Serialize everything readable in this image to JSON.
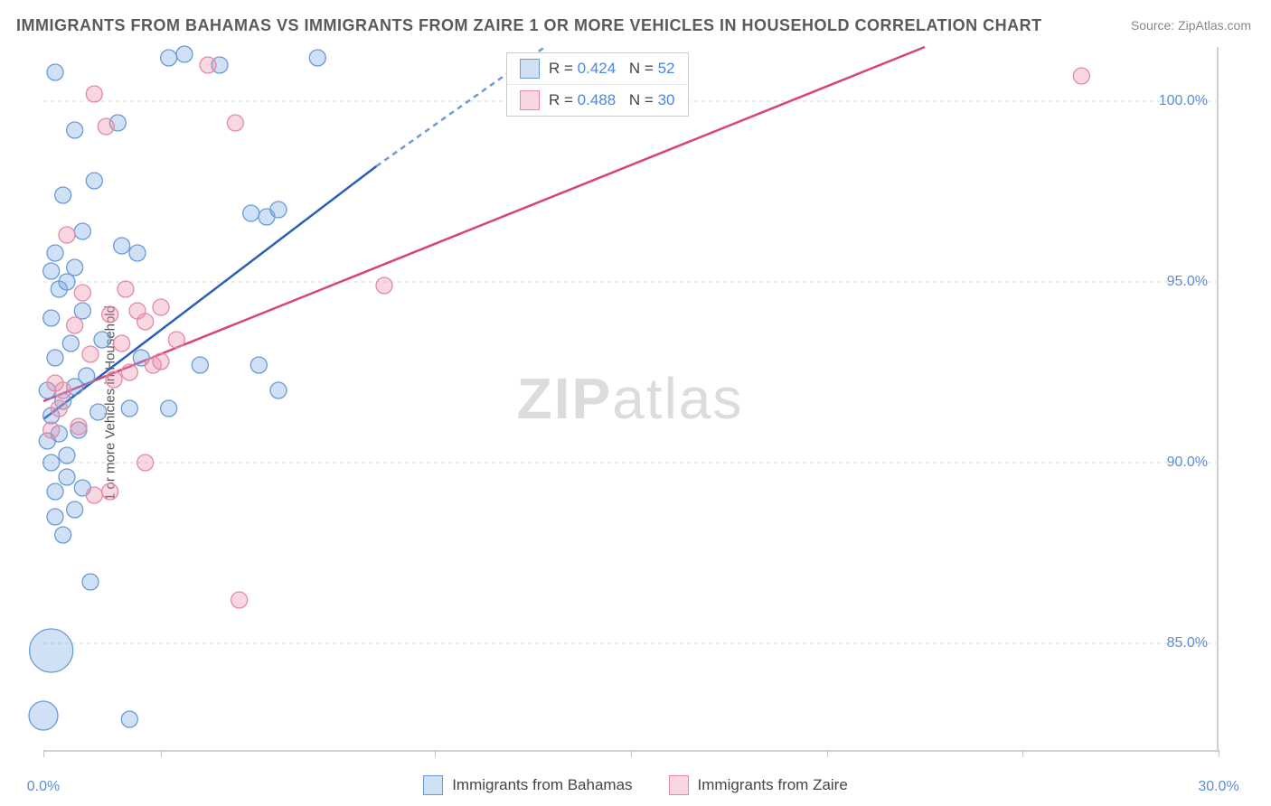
{
  "title": "IMMIGRANTS FROM BAHAMAS VS IMMIGRANTS FROM ZAIRE 1 OR MORE VEHICLES IN HOUSEHOLD CORRELATION CHART",
  "source": "Source: ZipAtlas.com",
  "watermark_bold": "ZIP",
  "watermark_light": "atlas",
  "ylabel": "1 or more Vehicles in Household",
  "chart": {
    "type": "scatter",
    "background_color": "#ffffff",
    "grid_color": "#d8d8d8",
    "grid_dash": "4,4",
    "xlim": [
      0,
      30
    ],
    "ylim": [
      82,
      101.5
    ],
    "xtick_labels": [
      {
        "x": 0,
        "label": "0.0%"
      },
      {
        "x": 30,
        "label": "30.0%"
      }
    ],
    "xtick_marks": [
      0,
      3,
      10,
      15,
      20,
      25,
      30
    ],
    "ytick_labels": [
      {
        "y": 85,
        "label": "85.0%"
      },
      {
        "y": 90,
        "label": "90.0%"
      },
      {
        "y": 95,
        "label": "95.0%"
      },
      {
        "y": 100,
        "label": "100.0%"
      }
    ],
    "tick_label_color": "#5b8fd6",
    "tick_label_fontsize": 16,
    "series": [
      {
        "name": "Immigrants from Bahamas",
        "color_fill": "rgba(120,165,225,0.35)",
        "color_stroke": "#6a9ad8",
        "marker_radius": 9,
        "line_color": "#2a5fb8",
        "line_width": 2.5,
        "line_dash_color": "#6a9ad8",
        "R": "0.424",
        "N": "52",
        "regression_solid": {
          "x1": 0,
          "y1": 91.2,
          "x2": 8.5,
          "y2": 98.2
        },
        "regression_dash": {
          "x1": 8.5,
          "y1": 98.2,
          "x2": 12.8,
          "y2": 101.5
        },
        "points": [
          {
            "x": 0.0,
            "y": 83.0,
            "r": 16
          },
          {
            "x": 0.2,
            "y": 84.8,
            "r": 24
          },
          {
            "x": 2.2,
            "y": 82.9
          },
          {
            "x": 1.2,
            "y": 86.7
          },
          {
            "x": 0.5,
            "y": 88.0
          },
          {
            "x": 0.3,
            "y": 88.5
          },
          {
            "x": 0.8,
            "y": 88.7
          },
          {
            "x": 0.3,
            "y": 89.2
          },
          {
            "x": 1.0,
            "y": 89.3
          },
          {
            "x": 0.6,
            "y": 89.6
          },
          {
            "x": 0.2,
            "y": 90.0
          },
          {
            "x": 0.6,
            "y": 90.2
          },
          {
            "x": 0.1,
            "y": 90.6
          },
          {
            "x": 0.4,
            "y": 90.8
          },
          {
            "x": 0.9,
            "y": 90.9
          },
          {
            "x": 0.2,
            "y": 91.3
          },
          {
            "x": 1.4,
            "y": 91.4
          },
          {
            "x": 2.2,
            "y": 91.5
          },
          {
            "x": 3.2,
            "y": 91.5
          },
          {
            "x": 0.5,
            "y": 91.7
          },
          {
            "x": 0.1,
            "y": 92.0
          },
          {
            "x": 0.8,
            "y": 92.1
          },
          {
            "x": 1.1,
            "y": 92.4
          },
          {
            "x": 4.0,
            "y": 92.7
          },
          {
            "x": 6.0,
            "y": 92.0
          },
          {
            "x": 5.5,
            "y": 92.7
          },
          {
            "x": 0.3,
            "y": 92.9
          },
          {
            "x": 2.5,
            "y": 92.9
          },
          {
            "x": 0.7,
            "y": 93.3
          },
          {
            "x": 1.5,
            "y": 93.4
          },
          {
            "x": 0.2,
            "y": 94.0
          },
          {
            "x": 1.0,
            "y": 94.2
          },
          {
            "x": 0.4,
            "y": 94.8
          },
          {
            "x": 0.6,
            "y": 95.0
          },
          {
            "x": 0.2,
            "y": 95.3
          },
          {
            "x": 0.8,
            "y": 95.4
          },
          {
            "x": 0.3,
            "y": 95.8
          },
          {
            "x": 2.4,
            "y": 95.8
          },
          {
            "x": 1.0,
            "y": 96.4
          },
          {
            "x": 2.0,
            "y": 96.0
          },
          {
            "x": 5.7,
            "y": 96.8
          },
          {
            "x": 5.3,
            "y": 96.9
          },
          {
            "x": 6.0,
            "y": 97.0
          },
          {
            "x": 0.8,
            "y": 99.2
          },
          {
            "x": 1.9,
            "y": 99.4
          },
          {
            "x": 0.3,
            "y": 100.8
          },
          {
            "x": 3.2,
            "y": 101.2
          },
          {
            "x": 3.6,
            "y": 101.3
          },
          {
            "x": 4.5,
            "y": 101.0
          },
          {
            "x": 7.0,
            "y": 101.2
          },
          {
            "x": 0.5,
            "y": 97.4
          },
          {
            "x": 1.3,
            "y": 97.8
          }
        ]
      },
      {
        "name": "Immigrants from Zaire",
        "color_fill": "rgba(235,140,170,0.35)",
        "color_stroke": "#e28aa8",
        "marker_radius": 9,
        "line_color": "#d6447a",
        "line_width": 2.5,
        "R": "0.488",
        "N": "30",
        "regression_solid": {
          "x1": 0,
          "y1": 91.7,
          "x2": 22.5,
          "y2": 101.5
        },
        "points": [
          {
            "x": 5.0,
            "y": 86.2
          },
          {
            "x": 1.3,
            "y": 89.1
          },
          {
            "x": 1.7,
            "y": 89.2
          },
          {
            "x": 2.6,
            "y": 90.0
          },
          {
            "x": 0.2,
            "y": 90.9
          },
          {
            "x": 0.9,
            "y": 91.0
          },
          {
            "x": 0.4,
            "y": 91.5
          },
          {
            "x": 0.3,
            "y": 92.2
          },
          {
            "x": 2.2,
            "y": 92.5
          },
          {
            "x": 2.8,
            "y": 92.7
          },
          {
            "x": 3.0,
            "y": 92.8
          },
          {
            "x": 1.2,
            "y": 93.0
          },
          {
            "x": 2.0,
            "y": 93.3
          },
          {
            "x": 3.4,
            "y": 93.4
          },
          {
            "x": 0.8,
            "y": 93.8
          },
          {
            "x": 1.7,
            "y": 94.1
          },
          {
            "x": 2.4,
            "y": 94.2
          },
          {
            "x": 3.0,
            "y": 94.3
          },
          {
            "x": 1.0,
            "y": 94.7
          },
          {
            "x": 2.1,
            "y": 94.8
          },
          {
            "x": 8.7,
            "y": 94.9
          },
          {
            "x": 0.6,
            "y": 96.3
          },
          {
            "x": 1.6,
            "y": 99.3
          },
          {
            "x": 4.9,
            "y": 99.4
          },
          {
            "x": 1.3,
            "y": 100.2
          },
          {
            "x": 4.2,
            "y": 101.0
          },
          {
            "x": 26.5,
            "y": 100.7
          },
          {
            "x": 0.5,
            "y": 92.0
          },
          {
            "x": 1.8,
            "y": 92.3
          },
          {
            "x": 2.6,
            "y": 93.9
          }
        ]
      }
    ]
  },
  "legend_bottom": [
    {
      "label": "Immigrants from Bahamas",
      "fill": "rgba(120,165,225,0.35)",
      "stroke": "#6a9ad8"
    },
    {
      "label": "Immigrants from Zaire",
      "fill": "rgba(235,140,170,0.35)",
      "stroke": "#e28aa8"
    }
  ]
}
